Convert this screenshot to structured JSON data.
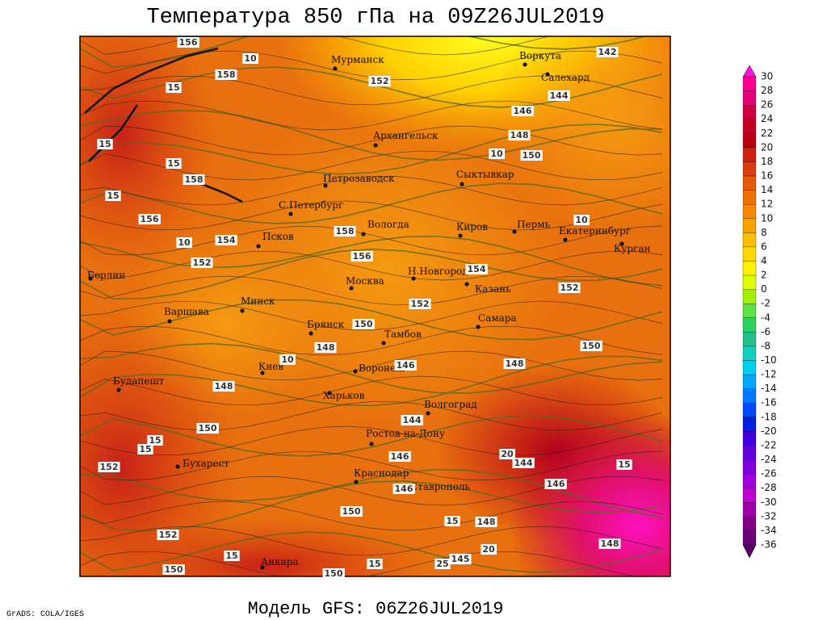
{
  "title": "Температура 850 гПа на 09Z26JUL2019",
  "subtitle": "Модель GFS: 06Z26JUL2019",
  "credit": "GrADS: COLA/IGES",
  "cities": [
    "Мурманск",
    "Архангельск",
    "Воркута",
    "Салехард",
    "Петрозаводск",
    "Сыктывкар",
    "С.Петербург",
    "Вологда",
    "Киров",
    "Пермь",
    "Екатеринбург",
    "Курган",
    "Псков",
    "Берлин",
    "Москва",
    "Н.Новгород",
    "Казань",
    "Минск",
    "Варшава",
    "Самара",
    "Брянск",
    "Тамбов",
    "Воронеж",
    "Киев",
    "Харьков",
    "Будапешт",
    "Волгоград",
    "Ростов-на-Дону",
    "Бухарест",
    "Краснодар",
    "Ставрополь",
    "Анкара"
  ],
  "contour_labels": [
    156,
    10,
    158,
    152,
    142,
    15,
    146,
    144,
    148,
    15,
    10,
    150,
    15,
    158,
    15,
    156,
    10,
    154,
    158,
    10,
    156,
    152,
    154,
    152,
    152,
    150,
    148,
    150,
    10,
    146,
    148,
    148,
    144,
    150,
    15,
    15,
    20,
    144,
    146,
    152,
    146,
    146,
    15,
    150,
    148,
    15,
    152,
    148,
    15,
    20,
    145,
    15,
    25,
    150,
    150
  ],
  "colorbar": {
    "ticks": [
      30,
      28,
      26,
      24,
      22,
      20,
      18,
      16,
      14,
      12,
      10,
      8,
      6,
      4,
      2,
      0,
      -2,
      -4,
      -6,
      -8,
      -10,
      -12,
      -14,
      -16,
      -18,
      -20,
      -22,
      -24,
      -26,
      -28,
      -30,
      -32,
      -34,
      -36
    ]
  }
}
